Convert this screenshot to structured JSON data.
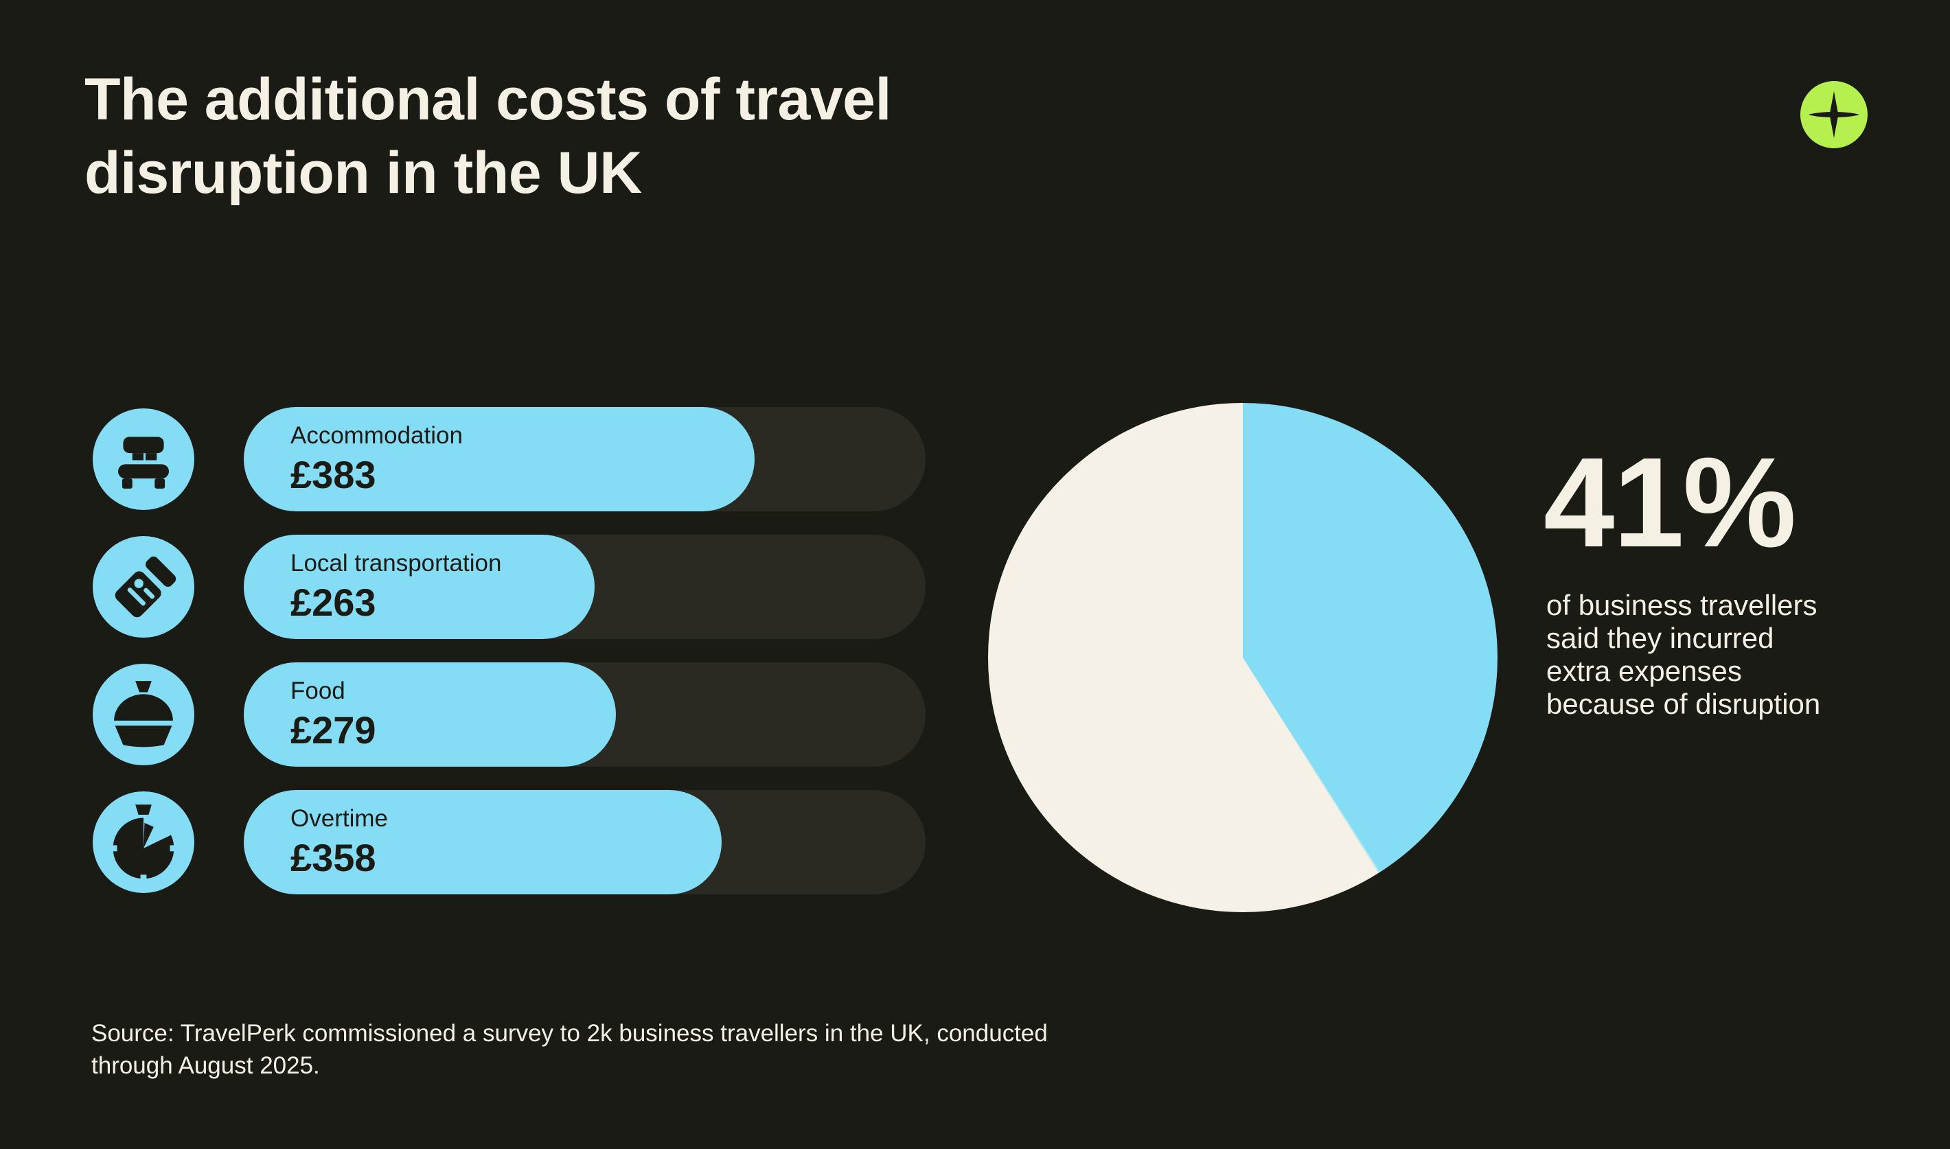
{
  "theme": {
    "background": "#1b1b15",
    "accent_blue": "#84dcf5",
    "cream": "#f4f1e4",
    "lime": "#b5f04f",
    "track_gray": "#2a2a23",
    "dark_text": "#1b1b15"
  },
  "header": {
    "title_lines": [
      "The additional costs of travel",
      "disruption  in the UK"
    ]
  },
  "rows": [
    {
      "icon": "bed-icon",
      "label": "Accommodation",
      "amount": "£383"
    },
    {
      "icon": "ticket-icon",
      "label": "Local transportation",
      "amount": "£263"
    },
    {
      "icon": "cloche-icon",
      "label": "Food",
      "amount": "£279"
    },
    {
      "icon": "stopwatch-icon",
      "label": "Overtime",
      "amount": "£358"
    }
  ],
  "stat": {
    "number": "41%",
    "lines": [
      "of business travellers",
      "said they incurred",
      "extra expenses",
      "because of disruption"
    ]
  },
  "source": {
    "lines": [
      "Source: TravelPerk commissioned a survey to 2k business travellers in the UK, conducted",
      "through August 2025."
    ]
  },
  "chart_data": [
    {
      "type": "bar",
      "orientation": "horizontal",
      "title": "The additional costs of travel disruption in the UK",
      "categories": [
        "Accommodation",
        "Local transportation",
        "Food",
        "Overtime"
      ],
      "values": [
        383,
        263,
        279,
        358
      ],
      "value_labels": [
        "£383",
        "£263",
        "£279",
        "£358"
      ],
      "unit": "GBP",
      "bar_scale_max": 511,
      "bar_color": "#84dcf5",
      "track_color": "#2a2a23",
      "grid": false,
      "legend": false
    },
    {
      "type": "pie",
      "start_angle_deg": 0,
      "direction": "clockwise",
      "slices": [
        {
          "label": "incurred extra expenses because of disruption",
          "value": 41,
          "color": "#84dcf5"
        },
        {
          "label": "remainder",
          "value": 59,
          "color": "#f5f1e6"
        }
      ],
      "annotation": "41% of business travellers said they incurred extra expenses because of disruption"
    }
  ]
}
